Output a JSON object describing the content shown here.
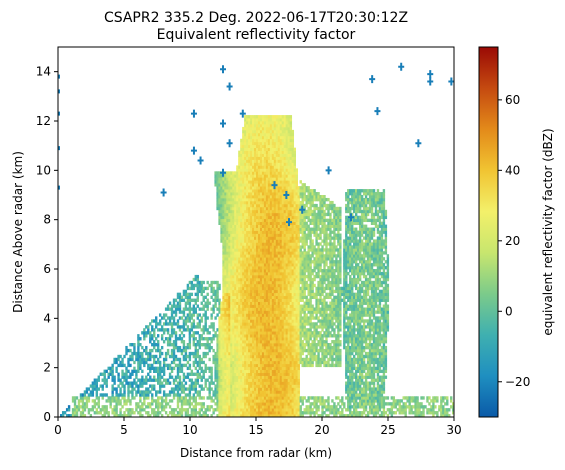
{
  "chart_data": {
    "type": "heatmap",
    "title": "CSAPR2 335.2 Deg. 2022-06-17T20:30:12Z",
    "subtitle": "Equivalent reflectivity factor",
    "xlabel": "Distance from radar (km)",
    "ylabel": "Distance Above radar  (km)",
    "xlim": [
      0,
      30
    ],
    "ylim": [
      0,
      15
    ],
    "xticks": [
      "0",
      "5",
      "10",
      "15",
      "20",
      "25",
      "30"
    ],
    "yticks": [
      "0",
      "2",
      "4",
      "6",
      "8",
      "10",
      "12",
      "14"
    ],
    "colorbar": {
      "label": "equivalent reflectivity factor (dBZ)",
      "range": [
        -30,
        75
      ],
      "ticks": [
        "−20",
        "0",
        "20",
        "40",
        "60"
      ],
      "tick_values": [
        -20,
        0,
        20,
        40,
        60
      ],
      "colormap": [
        "#0a5aa8",
        "#1f8fc0",
        "#3fb0b0",
        "#7ccb8a",
        "#c8e66e",
        "#f3f06a",
        "#f1c432",
        "#e38a1a",
        "#c54a10",
        "#9a0a05"
      ]
    },
    "echoes": [
      {
        "x": [
          12.0,
          18.5
        ],
        "y": [
          0,
          12.2
        ],
        "dbz_core": 38
      },
      {
        "x": [
          18.5,
          24.0
        ],
        "y": [
          0,
          9.6
        ],
        "dbz_core": 12
      },
      {
        "x": [
          21.5,
          25.0
        ],
        "y": [
          0,
          9.0
        ],
        "dbz_core": 5
      },
      {
        "x": [
          0,
          10.5
        ],
        "y": [
          0,
          6.0
        ],
        "dbz_core": -15
      }
    ],
    "clutter_points": [
      {
        "x": 8.0,
        "y": 9.1
      },
      {
        "x": 10.3,
        "y": 12.3
      },
      {
        "x": 10.3,
        "y": 10.8
      },
      {
        "x": 10.8,
        "y": 10.4
      },
      {
        "x": 12.5,
        "y": 14.1
      },
      {
        "x": 13.0,
        "y": 13.4
      },
      {
        "x": 12.5,
        "y": 11.9
      },
      {
        "x": 13.0,
        "y": 11.1
      },
      {
        "x": 14.0,
        "y": 12.3
      },
      {
        "x": 12.5,
        "y": 9.9
      },
      {
        "x": 16.4,
        "y": 9.4
      },
      {
        "x": 17.3,
        "y": 9.0
      },
      {
        "x": 17.5,
        "y": 7.9
      },
      {
        "x": 18.5,
        "y": 8.4
      },
      {
        "x": 20.5,
        "y": 10.0
      },
      {
        "x": 22.2,
        "y": 8.1
      },
      {
        "x": 23.8,
        "y": 13.7
      },
      {
        "x": 24.2,
        "y": 12.4
      },
      {
        "x": 26.0,
        "y": 14.2
      },
      {
        "x": 27.3,
        "y": 11.1
      },
      {
        "x": 28.2,
        "y": 13.9
      },
      {
        "x": 28.2,
        "y": 13.6
      },
      {
        "x": 29.8,
        "y": 13.6
      }
    ]
  }
}
